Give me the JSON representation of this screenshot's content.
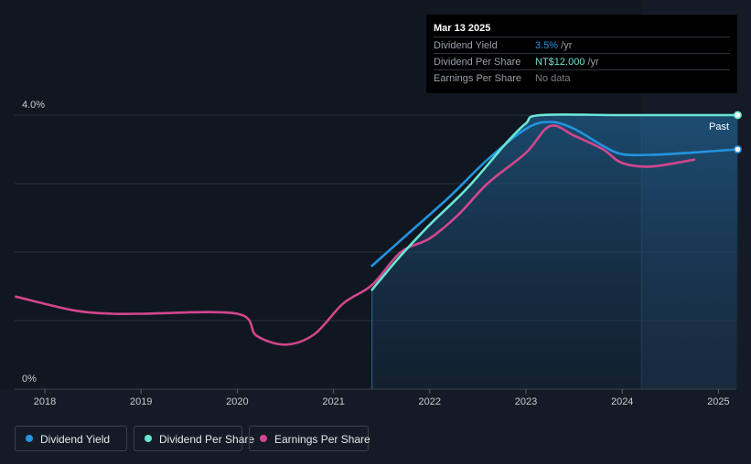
{
  "tooltip": {
    "date": "Mar 13 2025",
    "rows": [
      {
        "label": "Dividend Yield",
        "value": "3.5%",
        "unit": " /yr",
        "color": "#2394df"
      },
      {
        "label": "Dividend Per Share",
        "value": "NT$12.000",
        "unit": " /yr",
        "color": "#6ae6d4"
      },
      {
        "label": "Earnings Per Share",
        "value": "No data",
        "unit": "",
        "color": "#7a7f87"
      }
    ]
  },
  "past_label": "Past",
  "legend": [
    {
      "label": "Dividend Yield",
      "color": "#2394df"
    },
    {
      "label": "Dividend Per Share",
      "color": "#6ae6d4"
    },
    {
      "label": "Earnings Per Share",
      "color": "#d2468d"
    }
  ],
  "chart_data": {
    "type": "line",
    "x_ticks": [
      "2018",
      "2019",
      "2020",
      "2021",
      "2022",
      "2023",
      "2024",
      "2025"
    ],
    "y_ticks": [
      "0%",
      "4.0%"
    ],
    "ylim": [
      0,
      4.0
    ],
    "xlim": [
      2017.7,
      2025.2
    ],
    "shaded_from": 2021.4,
    "past_from": 2024.2,
    "series": [
      {
        "name": "Dividend Yield",
        "color": "#2394df",
        "points": [
          [
            2021.4,
            1.8
          ],
          [
            2021.8,
            2.3
          ],
          [
            2022.2,
            2.8
          ],
          [
            2022.6,
            3.35
          ],
          [
            2023.0,
            3.8
          ],
          [
            2023.25,
            3.9
          ],
          [
            2023.5,
            3.8
          ],
          [
            2023.8,
            3.55
          ],
          [
            2024.0,
            3.43
          ],
          [
            2024.3,
            3.42
          ],
          [
            2024.7,
            3.45
          ],
          [
            2025.2,
            3.5
          ]
        ]
      },
      {
        "name": "Dividend Per Share",
        "color": "#6ae6d4",
        "points": [
          [
            2021.4,
            1.45
          ],
          [
            2021.7,
            1.95
          ],
          [
            2022.0,
            2.4
          ],
          [
            2022.4,
            2.95
          ],
          [
            2022.8,
            3.6
          ],
          [
            2023.0,
            3.88
          ],
          [
            2023.15,
            4.0
          ],
          [
            2024.0,
            4.0
          ],
          [
            2025.2,
            4.0
          ]
        ]
      },
      {
        "name": "Earnings Per Share",
        "color": "#d2468d",
        "points": [
          [
            2017.7,
            1.35
          ],
          [
            2018.3,
            1.15
          ],
          [
            2018.7,
            1.1
          ],
          [
            2019.0,
            1.1
          ],
          [
            2020.0,
            1.1
          ],
          [
            2020.2,
            0.78
          ],
          [
            2020.5,
            0.65
          ],
          [
            2020.8,
            0.8
          ],
          [
            2021.1,
            1.25
          ],
          [
            2021.4,
            1.52
          ],
          [
            2021.7,
            2.0
          ],
          [
            2022.0,
            2.2
          ],
          [
            2022.3,
            2.55
          ],
          [
            2022.6,
            3.0
          ],
          [
            2023.0,
            3.45
          ],
          [
            2023.25,
            3.84
          ],
          [
            2023.5,
            3.7
          ],
          [
            2023.8,
            3.5
          ],
          [
            2024.0,
            3.3
          ],
          [
            2024.3,
            3.25
          ],
          [
            2024.75,
            3.35
          ]
        ]
      }
    ]
  }
}
